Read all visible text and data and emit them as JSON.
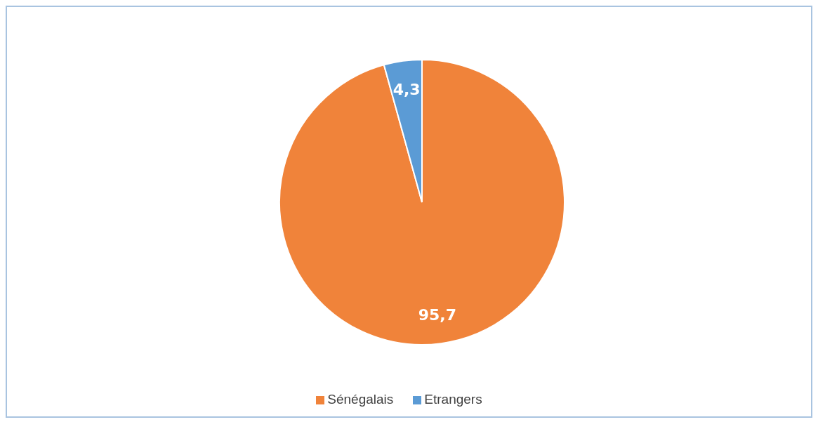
{
  "chart_data": {
    "type": "pie",
    "categories": [
      "Sénégalais",
      "Etrangers"
    ],
    "values": [
      95.7,
      4.3
    ],
    "colors": [
      "#f0833a",
      "#5b9bd5"
    ],
    "value_labels": [
      "95,7",
      "4,3"
    ],
    "legend": "bottom"
  }
}
